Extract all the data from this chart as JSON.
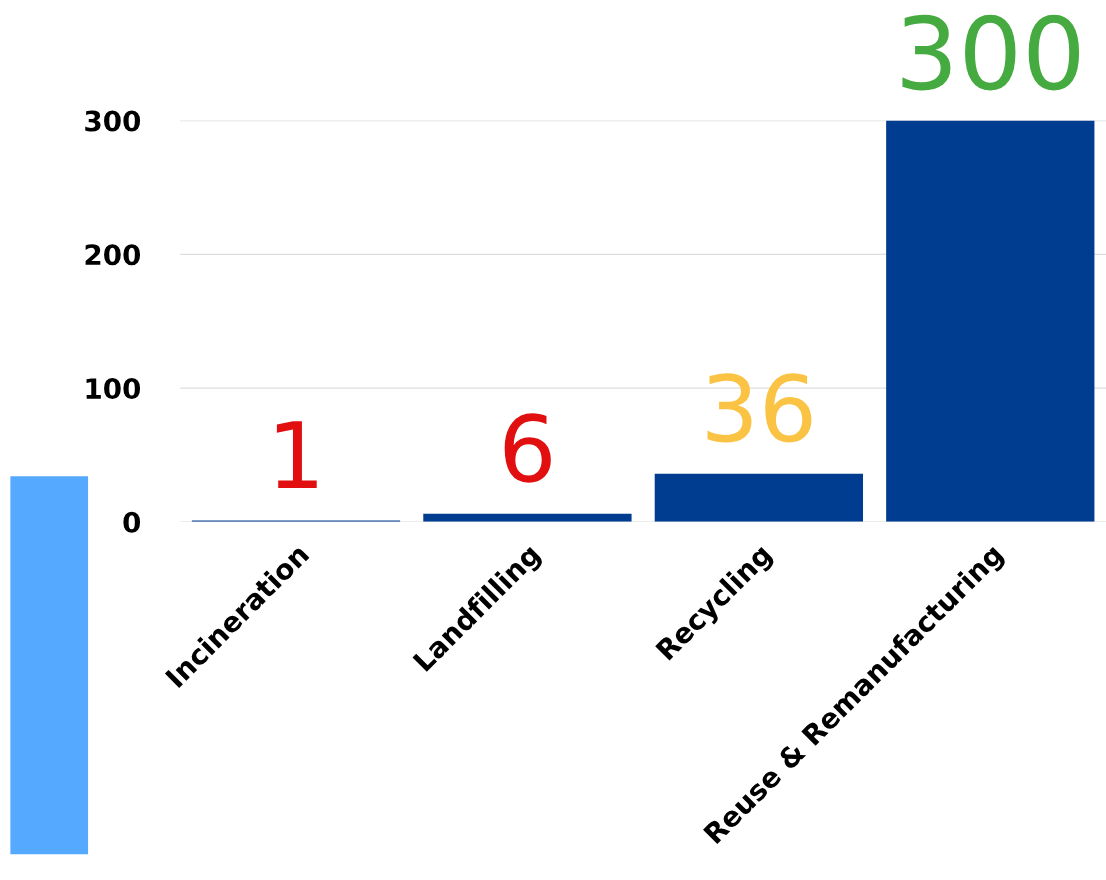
{
  "chart_data": {
    "type": "bar",
    "categories": [
      "Incineration",
      "Landfilling",
      "Recycling",
      "Reuse & Remanufacturing"
    ],
    "values": [
      1,
      6,
      36,
      300
    ],
    "color": "#003c8f",
    "ylim": [
      0,
      300
    ],
    "yticks": [
      0,
      100,
      200,
      300
    ],
    "grid": "y",
    "data_labels": true
  }
}
